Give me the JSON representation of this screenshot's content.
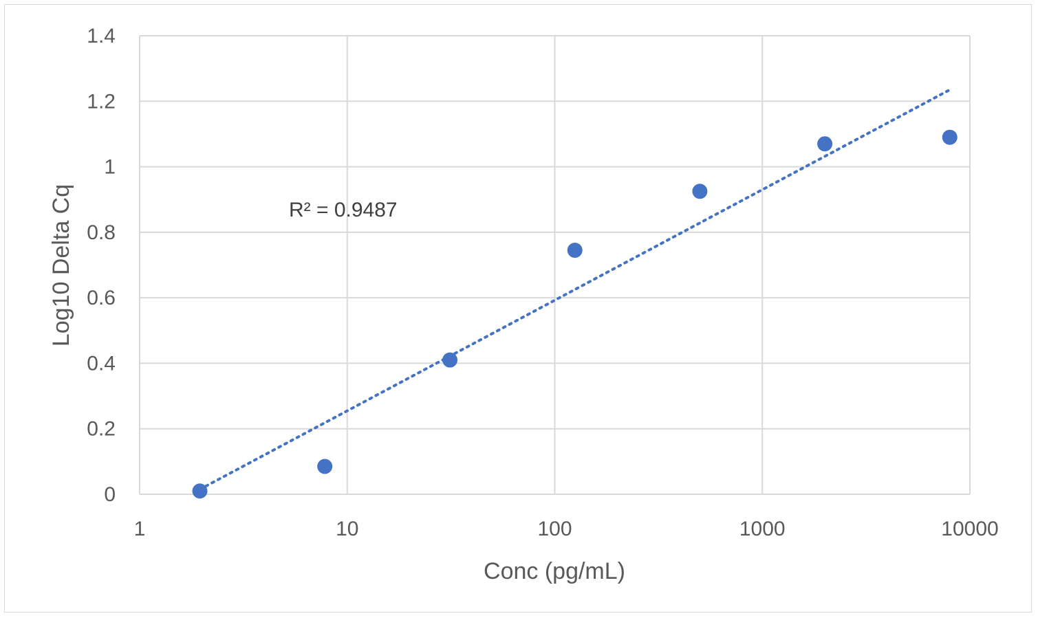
{
  "chart_data": {
    "type": "scatter",
    "xlabel": "Conc (pg/mL)",
    "ylabel": "Log10 Delta Cq",
    "x_scale": "log",
    "xlim": [
      1,
      10000
    ],
    "ylim": [
      0,
      1.4
    ],
    "x_ticks": [
      "1",
      "10",
      "100",
      "1000",
      "10000"
    ],
    "y_ticks": [
      "0",
      "0.2",
      "0.4",
      "0.6",
      "0.8",
      "1",
      "1.2",
      "1.4"
    ],
    "grid": true,
    "points": [
      {
        "x": 1.95,
        "y": 0.01
      },
      {
        "x": 7.8,
        "y": 0.085
      },
      {
        "x": 31.25,
        "y": 0.41
      },
      {
        "x": 125,
        "y": 0.745
      },
      {
        "x": 500,
        "y": 0.925
      },
      {
        "x": 2000,
        "y": 1.07
      },
      {
        "x": 8000,
        "y": 1.09
      }
    ],
    "trendline": {
      "style": "dotted",
      "x": [
        1.95,
        8000
      ],
      "y": [
        0.015,
        1.235
      ]
    },
    "annotation": "R² = 0.9487",
    "colors": {
      "marker": "#4472C4",
      "trendline": "#4472C4",
      "grid": "#d9d9d9",
      "text": "#595959"
    }
  }
}
